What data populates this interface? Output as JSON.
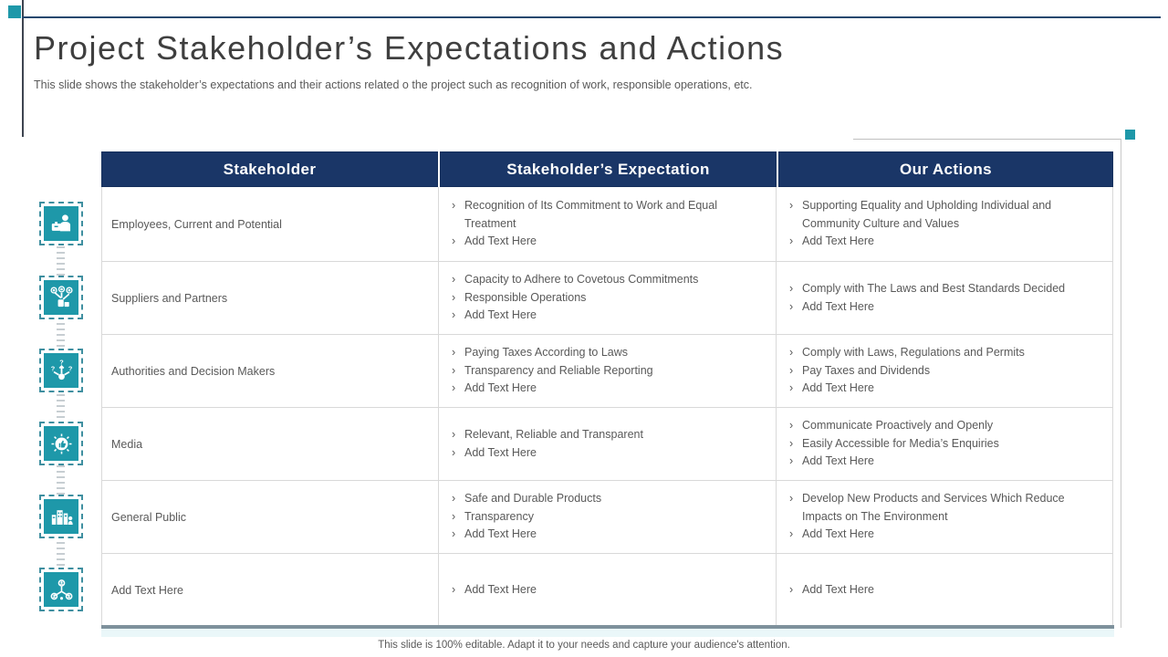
{
  "slide": {
    "title": "Project Stakeholder’s Expectations and Actions",
    "subtitle": "This slide shows the stakeholder’s expectations and their actions related o the project such as recognition of work, responsible operations, etc.",
    "footer": "This slide is 100% editable.  Adapt it to your needs and capture your audience's attention."
  },
  "colors": {
    "accent_teal": "#1E98A9",
    "header_navy": "#1A3667",
    "body_text": "#595959",
    "table_border": "#D9D9D9",
    "bottom_bar": "#7E919C",
    "bottom_band": "#EAF7F9"
  },
  "bullet_char": "›",
  "placeholder_label": "Add Text Here",
  "table": {
    "headers": [
      "Stakeholder",
      "Stakeholder’s Expectation",
      "Our Actions"
    ],
    "rows": [
      {
        "icon": "employee-icon",
        "stakeholder": "Employees, Current and Potential",
        "expectations": [
          "Recognition of Its Commitment  to Work and Equal Treatment",
          "Add Text Here"
        ],
        "actions": [
          "Supporting  Equality and Upholding  Individual  and Community  Culture and Values",
          "Add Text Here"
        ]
      },
      {
        "icon": "partners-icon",
        "stakeholder": "Suppliers and Partners",
        "expectations": [
          "Capacity to Adhere  to Covetous  Commitments",
          "Responsible  Operations",
          "Add Text Here"
        ],
        "actions": [
          "Comply with The Laws and Best Standards  Decided",
          "Add Text Here"
        ]
      },
      {
        "icon": "decision-icon",
        "stakeholder": "Authorities  and Decision Makers",
        "expectations": [
          "Paying Taxes According  to Laws",
          "Transparency  and Reliable  Reporting",
          "Add Text Here"
        ],
        "actions": [
          "Comply  with Laws, Regulations  and Permits",
          "Pay Taxes and Dividends",
          "Add Text Here"
        ]
      },
      {
        "icon": "media-icon",
        "stakeholder": "Media",
        "expectations": [
          "Relevant,  Reliable  and Transparent",
          "Add Text Here"
        ],
        "actions": [
          "Communicate  Proactively  and Openly",
          "Easily Accessible  for Media’s Enquiries",
          "Add Text Here"
        ]
      },
      {
        "icon": "public-icon",
        "stakeholder": "General  Public",
        "expectations": [
          "Safe and Durable  Products",
          "Transparency",
          "Add Text Here"
        ],
        "actions": [
          "Develop New Products  and Services  Which Reduce Impacts  on The Environment",
          "Add Text Here"
        ]
      },
      {
        "icon": "hierarchy-icon",
        "stakeholder": "Add Text Here",
        "expectations": [
          "Add Text Here"
        ],
        "actions": [
          "Add Text Here"
        ]
      }
    ]
  }
}
